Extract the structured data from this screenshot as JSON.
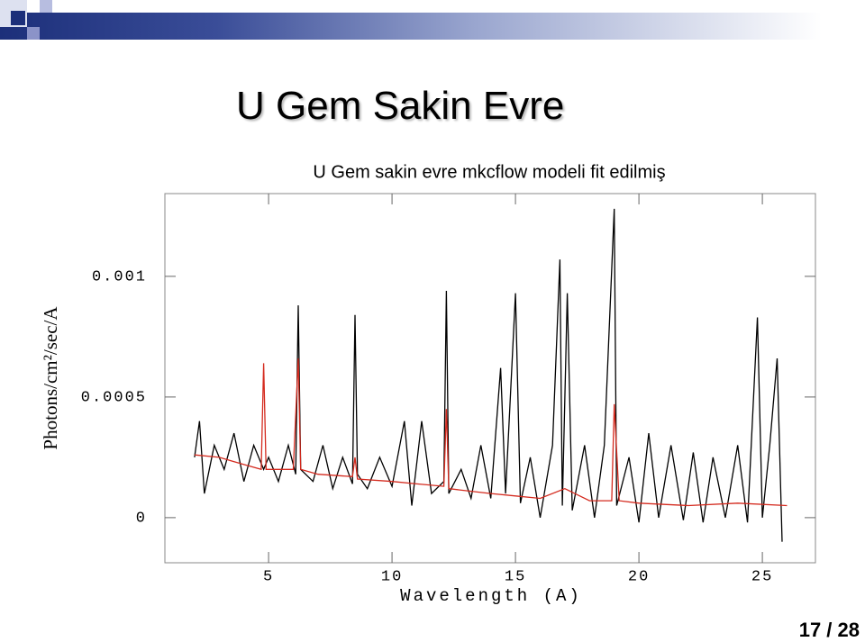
{
  "slide": {
    "title": "U Gem Sakin Evre",
    "page": "17 / 28"
  },
  "chart_data": {
    "type": "line",
    "title": "U Gem sakin evre mkcflow modeli fit edilmiş",
    "x_label": "Wavelength (A)",
    "y_label": "Photons/cm²/sec/A",
    "xlim": [
      0.8,
      27.15
    ],
    "ylim": [
      -0.000187,
      0.001343
    ],
    "xticks": [
      5,
      10,
      15,
      20,
      25
    ],
    "yticks": [
      0,
      0.0005,
      0.001
    ],
    "series": [
      {
        "color": "#000000",
        "x": [
          2.0,
          2.2,
          2.4,
          2.8,
          3.2,
          3.6,
          4.0,
          4.4,
          4.8,
          5.0,
          5.4,
          5.8,
          6.1,
          6.2,
          6.3,
          6.8,
          7.2,
          7.6,
          8.0,
          8.4,
          8.5,
          8.6,
          9.0,
          9.5,
          10.0,
          10.5,
          10.8,
          11.2,
          11.6,
          12.1,
          12.2,
          12.3,
          12.8,
          13.2,
          13.6,
          14.0,
          14.4,
          14.6,
          15.0,
          15.2,
          15.6,
          16.0,
          16.5,
          16.8,
          16.9,
          17.1,
          17.3,
          17.8,
          18.2,
          18.6,
          19.0,
          19.1,
          19.6,
          20.0,
          20.4,
          20.8,
          21.3,
          21.8,
          22.2,
          22.6,
          23.0,
          23.5,
          24.0,
          24.4,
          24.8,
          25.0,
          25.3,
          25.6,
          25.8
        ],
        "values": [
          0.00025,
          0.0004,
          0.0001,
          0.0003,
          0.0002,
          0.00035,
          0.00015,
          0.0003,
          0.0002,
          0.00025,
          0.00015,
          0.0003,
          0.00018,
          0.00088,
          0.0002,
          0.00015,
          0.0003,
          0.00012,
          0.00025,
          0.00014,
          0.00084,
          0.00018,
          0.00012,
          0.00025,
          0.00013,
          0.0004,
          5e-05,
          0.0004,
          0.0001,
          0.00015,
          0.00094,
          0.0001,
          0.0002,
          8e-05,
          0.0003,
          8e-05,
          0.00062,
          0.0001,
          0.00093,
          6e-05,
          0.00025,
          0,
          0.0003,
          0.00107,
          5e-05,
          0.00093,
          3e-05,
          0.0003,
          0,
          0.0003,
          0.00128,
          5e-05,
          0.00025,
          -2e-05,
          0.00035,
          0,
          0.0003,
          -1e-05,
          0.00027,
          -2e-05,
          0.00025,
          0,
          0.0003,
          -2e-05,
          0.00083,
          0,
          0.0003,
          0.00066,
          -0.0001
        ]
      },
      {
        "color": "#d42a1e",
        "x": [
          2,
          3,
          4,
          4.7,
          4.8,
          4.9,
          6.0,
          6.2,
          6.3,
          7,
          8.4,
          8.5,
          8.6,
          10,
          11,
          12.1,
          12.2,
          12.3,
          14,
          15,
          16,
          17,
          18,
          18.9,
          19.0,
          19.2,
          20,
          22,
          24,
          26
        ],
        "values": [
          0.00026,
          0.00025,
          0.00022,
          0.0002,
          0.00064,
          0.0002,
          0.0002,
          0.00066,
          0.0002,
          0.00018,
          0.00017,
          0.00025,
          0.00016,
          0.00015,
          0.00014,
          0.00013,
          0.00045,
          0.00012,
          0.0001,
          9e-05,
          8e-05,
          0.00012,
          7e-05,
          7e-05,
          0.00047,
          7e-05,
          6e-05,
          5e-05,
          6e-05,
          5e-05
        ]
      }
    ]
  }
}
